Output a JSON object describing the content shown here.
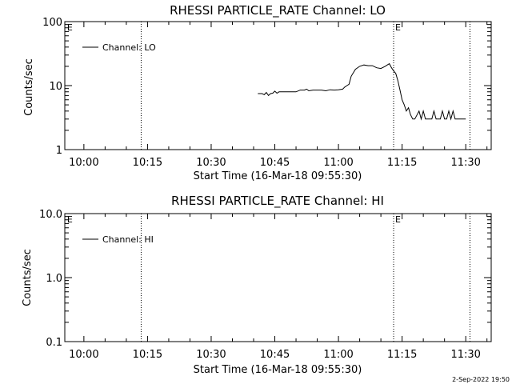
{
  "chart_data": [
    {
      "type": "line",
      "title": "RHESSI PARTICLE_RATE Channel: LO",
      "xlabel": "Start Time (16-Mar-18 09:55:30)",
      "ylabel": "Counts/sec",
      "yscale": "log",
      "ylim": [
        1,
        100
      ],
      "xlim": [
        "09:55:30",
        "11:36:00"
      ],
      "x_ticks": [
        "10:00",
        "10:15",
        "10:30",
        "10:45",
        "11:00",
        "11:15",
        "11:30"
      ],
      "y_ticks": [
        "1",
        "10",
        "100"
      ],
      "legend": "top-left",
      "grid": false,
      "vlines": [
        "10:13:30",
        "11:13:00",
        "11:31:00"
      ],
      "vline_labels": [
        {
          "x": "09:55:40",
          "text": "E"
        },
        {
          "x": "11:13:00",
          "text": "E"
        }
      ],
      "series": [
        {
          "name": "Channel: LO",
          "x": [
            "10:41:00",
            "10:42:00",
            "10:42:30",
            "10:43:00",
            "10:43:30",
            "10:44:00",
            "10:44:30",
            "10:45:00",
            "10:45:30",
            "10:46:00",
            "10:47:00",
            "10:48:00",
            "10:49:00",
            "10:50:00",
            "10:51:00",
            "10:52:00",
            "10:52:30",
            "10:53:00",
            "10:54:00",
            "10:55:00",
            "10:56:00",
            "10:57:00",
            "10:58:00",
            "10:59:00",
            "11:00:00",
            "11:01:00",
            "11:01:30",
            "11:02:00",
            "11:02:30",
            "11:03:00",
            "11:04:00",
            "11:05:00",
            "11:06:00",
            "11:07:00",
            "11:08:00",
            "11:09:00",
            "11:10:00",
            "11:11:00",
            "11:11:30",
            "11:12:00",
            "11:12:30",
            "11:13:00",
            "11:13:30",
            "11:14:00",
            "11:14:30",
            "11:15:00",
            "11:15:30",
            "11:16:00",
            "11:16:30",
            "11:17:00",
            "11:17:30",
            "11:18:00",
            "11:19:00",
            "11:19:30",
            "11:20:00",
            "11:20:30",
            "11:21:00",
            "11:22:00",
            "11:22:30",
            "11:23:00",
            "11:24:00",
            "11:24:30",
            "11:25:00",
            "11:25:30",
            "11:26:00",
            "11:26:30",
            "11:27:00",
            "11:27:30",
            "11:28:00",
            "11:29:00",
            "11:30:00"
          ],
          "y": [
            7.5,
            7.5,
            7.2,
            7.8,
            7.0,
            7.5,
            7.6,
            8.2,
            7.6,
            8.0,
            8.0,
            8.0,
            8.0,
            8.0,
            8.5,
            8.5,
            8.8,
            8.3,
            8.5,
            8.5,
            8.5,
            8.3,
            8.6,
            8.5,
            8.6,
            8.8,
            9.5,
            10.0,
            10.5,
            14.0,
            18.0,
            20.0,
            21.0,
            20.5,
            20.5,
            19.0,
            18.5,
            20.0,
            21.0,
            22.0,
            19.0,
            17.0,
            15.5,
            12.0,
            8.5,
            6.0,
            5.0,
            4.0,
            4.5,
            3.5,
            3.0,
            3.0,
            4.0,
            3.0,
            4.0,
            3.0,
            3.0,
            3.0,
            4.0,
            3.0,
            3.0,
            4.0,
            3.0,
            3.0,
            4.0,
            3.0,
            4.0,
            3.0,
            3.0,
            3.0,
            3.0
          ]
        }
      ]
    },
    {
      "type": "line",
      "title": "RHESSI PARTICLE_RATE Channel: HI",
      "xlabel": "Start Time (16-Mar-18 09:55:30)",
      "ylabel": "Counts/sec",
      "yscale": "log",
      "ylim": [
        0.1,
        10.0
      ],
      "xlim": [
        "09:55:30",
        "11:36:00"
      ],
      "x_ticks": [
        "10:00",
        "10:15",
        "10:30",
        "10:45",
        "11:00",
        "11:15",
        "11:30"
      ],
      "y_ticks": [
        "0.1",
        "1.0",
        "10.0"
      ],
      "legend": "top-left",
      "grid": false,
      "vlines": [
        "10:13:30",
        "11:13:00",
        "11:31:00"
      ],
      "vline_labels": [
        {
          "x": "09:55:40",
          "text": "E"
        },
        {
          "x": "11:13:00",
          "text": "E"
        }
      ],
      "series": [
        {
          "name": "Channel: HI",
          "x": [],
          "y": []
        }
      ]
    }
  ],
  "footer": {
    "timestamp": "2-Sep-2022 19:50"
  }
}
